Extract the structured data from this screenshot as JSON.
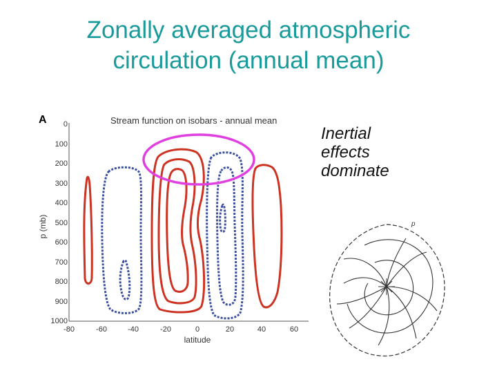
{
  "slide": {
    "title_lines": [
      "Zonally averaged atmospheric",
      "circulation (annual mean)"
    ],
    "title_color": "#1a9a9a"
  },
  "figure": {
    "panel_letter": "A",
    "plot_title": "Stream function on isobars - annual mean",
    "y_axis_label": "p (mb)",
    "x_axis_label": "latitude",
    "y_ticks": [
      "0",
      "100",
      "200",
      "300",
      "400",
      "500",
      "600",
      "700",
      "800",
      "900",
      "1000"
    ],
    "x_ticks": [
      "-80",
      "-60",
      "-40",
      "-20",
      "0",
      "20",
      "40",
      "60"
    ],
    "positive_contour_color": "#cc3322",
    "negative_contour_color": "#3a4fa0",
    "highlight_ellipse_color": "#e040e0"
  },
  "annotation": {
    "lines": [
      "Inertial",
      "effects",
      "dominate"
    ]
  },
  "spiral_diagram": {
    "label": "p",
    "icon": "rotating-spiral-flow-diagram"
  }
}
